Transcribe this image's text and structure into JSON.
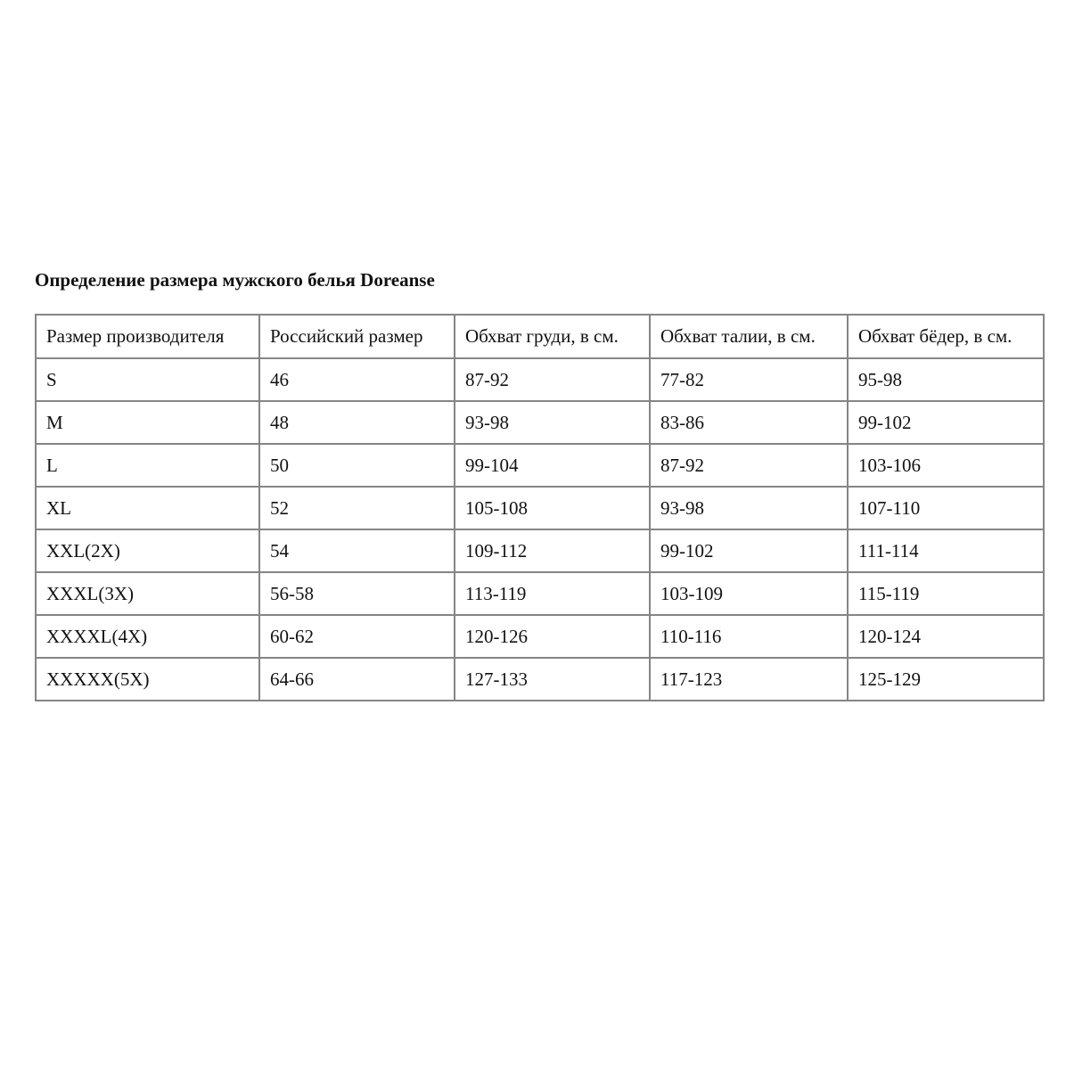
{
  "title": "Определение размера мужского белья Doreanse",
  "table": {
    "headers": [
      "Размер производителя",
      "Российский размер",
      "Обхват груди, в см.",
      "Обхват талии, в см.",
      "Обхват бёдер, в см."
    ],
    "rows": [
      [
        "S",
        "46",
        "87-92",
        "77-82",
        "95-98"
      ],
      [
        "M",
        "48",
        "93-98",
        "83-86",
        "99-102"
      ],
      [
        "L",
        "50",
        "99-104",
        "87-92",
        "103-106"
      ],
      [
        "XL",
        "52",
        "105-108",
        "93-98",
        "107-110"
      ],
      [
        "XXL(2X)",
        "54",
        "109-112",
        "99-102",
        "111-114"
      ],
      [
        "XXXL(3X)",
        "56-58",
        "113-119",
        "103-109",
        "115-119"
      ],
      [
        "XXXXL(4X)",
        "60-62",
        "120-126",
        "110-116",
        "120-124"
      ],
      [
        "XXXXX(5X)",
        "64-66",
        "127-133",
        "117-123",
        "125-129"
      ]
    ]
  }
}
